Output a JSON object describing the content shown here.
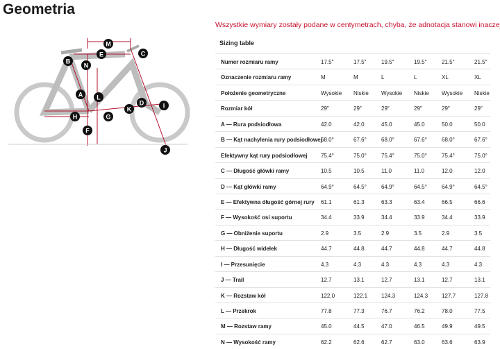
{
  "header": {
    "title": "Geometria",
    "note": "Wszystkie wymiary zostały podane w centymetrach, chyba, że adnotacja stanowi inaczej."
  },
  "diagram": {
    "labels": [
      "M",
      "E",
      "C",
      "B",
      "N",
      "A",
      "L",
      "H",
      "G",
      "F",
      "K",
      "D",
      "I",
      "J"
    ]
  },
  "table": {
    "caption": "Sizing table",
    "rows": [
      {
        "label": "Numer rozmiaru ramy",
        "values": [
          "17.5″",
          "17.5″",
          "19.5″",
          "19.5″",
          "21.5″",
          "21.5″"
        ]
      },
      {
        "label": "Oznaczenie rozmiaru ramy",
        "values": [
          "M",
          "M",
          "L",
          "L",
          "XL",
          "XL"
        ]
      },
      {
        "label": "Położenie geometryczne",
        "values": [
          "Wysokie",
          "Niskie",
          "Wysokie",
          "Niskie",
          "Wysokie",
          "Niskie"
        ]
      },
      {
        "label": "Rozmiar kół",
        "values": [
          "29″",
          "29″",
          "29″",
          "29″",
          "29″",
          "29″"
        ]
      },
      {
        "label": "A — Rura podsiodłowa",
        "values": [
          "42.0",
          "42.0",
          "45.0",
          "45.0",
          "50.0",
          "50.0"
        ]
      },
      {
        "label": "B — Kąt nachylenia rury podsiodłowej",
        "values": [
          "68.0°",
          "67.6°",
          "68.0°",
          "67.6°",
          "68.0°",
          "67.6°"
        ]
      },
      {
        "label": "Efektywny kąt rury podsiodłowej",
        "values": [
          "75.4°",
          "75.0°",
          "75.4°",
          "75.0°",
          "75.4°",
          "75.0°"
        ]
      },
      {
        "label": "C — Długość główki ramy",
        "values": [
          "10.5",
          "10.5",
          "11.0",
          "11.0",
          "12.0",
          "12.0"
        ]
      },
      {
        "label": "D — Kąt główki ramy",
        "values": [
          "64.9°",
          "64.5°",
          "64.9°",
          "64.5°",
          "64.9°",
          "64.5°"
        ]
      },
      {
        "label": "E — Efektywna długość górnej rury",
        "values": [
          "61.1",
          "61.3",
          "63.3",
          "63.4",
          "66.5",
          "66.6"
        ]
      },
      {
        "label": "F — Wysokość osi suportu",
        "values": [
          "34.4",
          "33.9",
          "34.4",
          "33.9",
          "34.4",
          "33.9"
        ]
      },
      {
        "label": "G — Obniżenie suportu",
        "values": [
          "2.9",
          "3.5",
          "2.9",
          "3.5",
          "2.9",
          "3.5"
        ]
      },
      {
        "label": "H — Długość widełek",
        "values": [
          "44.7",
          "44.8",
          "44.7",
          "44.8",
          "44.7",
          "44.8"
        ]
      },
      {
        "label": "I — Przesunięcie",
        "values": [
          "4.3",
          "4.3",
          "4.3",
          "4.3",
          "4.3",
          "4.3"
        ]
      },
      {
        "label": "J — Trail",
        "values": [
          "12.7",
          "13.1",
          "12.7",
          "13.1",
          "12.7",
          "13.1"
        ]
      },
      {
        "label": "K — Rozstaw kół",
        "values": [
          "122.0",
          "122.1",
          "124.3",
          "124.3",
          "127.7",
          "127.8"
        ]
      },
      {
        "label": "L — Przekrok",
        "values": [
          "77.8",
          "77.3",
          "76.7",
          "76.2",
          "78.0",
          "77.5"
        ]
      },
      {
        "label": "M — Rozstaw ramy",
        "values": [
          "45.0",
          "44.5",
          "47.0",
          "46.5",
          "49.9",
          "49.5"
        ]
      },
      {
        "label": "N — Wysokość ramy",
        "values": [
          "62.2",
          "62.6",
          "62.7",
          "63.0",
          "63.6",
          "63.9"
        ]
      }
    ]
  }
}
